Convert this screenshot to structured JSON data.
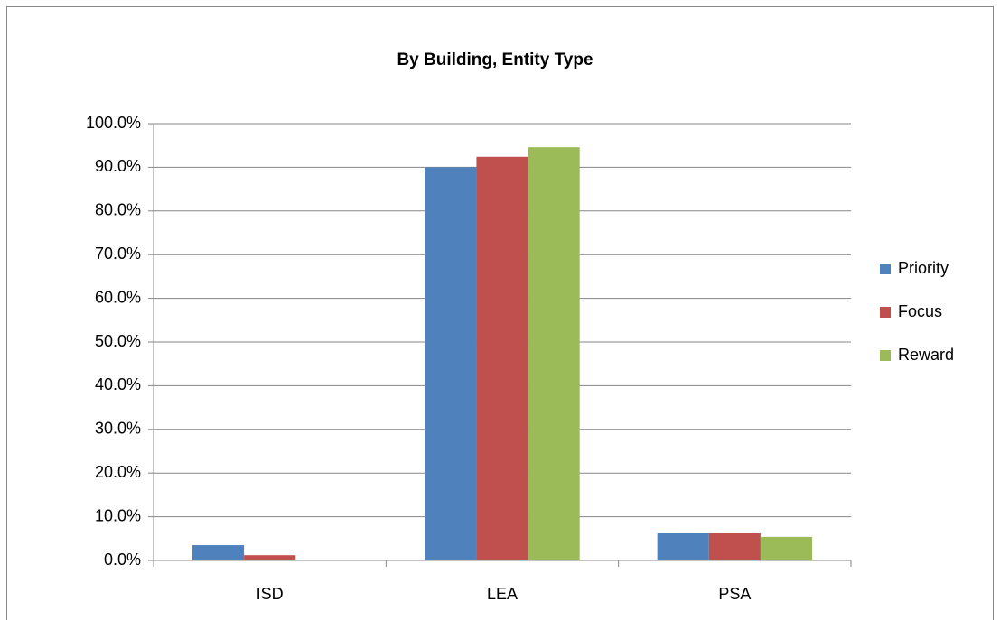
{
  "chart_data": {
    "type": "bar",
    "title": "By Building, Entity Type",
    "categories": [
      "ISD",
      "LEA",
      "PSA"
    ],
    "series": [
      {
        "name": "Priority",
        "color": "#4f81bd",
        "values": [
          3.5,
          90.0,
          6.2
        ]
      },
      {
        "name": "Focus",
        "color": "#c0504d",
        "values": [
          1.2,
          92.4,
          6.2
        ]
      },
      {
        "name": "Reward",
        "color": "#9bbb59",
        "values": [
          0,
          94.6,
          5.4
        ]
      }
    ],
    "ylim": [
      0,
      100
    ],
    "yticks": [
      {
        "value": 0,
        "label": "0.0%"
      },
      {
        "value": 10,
        "label": "10.0%"
      },
      {
        "value": 20,
        "label": "20.0%"
      },
      {
        "value": 30,
        "label": "30.0%"
      },
      {
        "value": 40,
        "label": "40.0%"
      },
      {
        "value": 50,
        "label": "50.0%"
      },
      {
        "value": 60,
        "label": "60.0%"
      },
      {
        "value": 70,
        "label": "70.0%"
      },
      {
        "value": 80,
        "label": "80.0%"
      },
      {
        "value": 90,
        "label": "90.0%"
      },
      {
        "value": 100,
        "label": "100.0%"
      }
    ],
    "grid": true,
    "legend": "right"
  }
}
